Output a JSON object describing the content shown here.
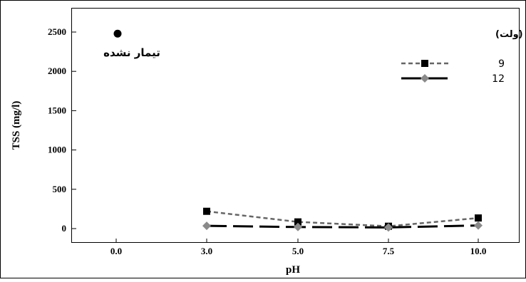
{
  "chart_data": {
    "type": "line",
    "xlabel": "pH",
    "ylabel": "TSS (mg/l)",
    "categories": [
      "0.0",
      "3.0",
      "5.0",
      "7.5",
      "10.0"
    ],
    "ylim": [
      0,
      2500
    ],
    "yticks": [
      "0",
      "500",
      "1000",
      "1500",
      "2000",
      "2500"
    ],
    "grid": false,
    "legend_placement": "top-right",
    "legend_title": "ولتاژ (ولت)",
    "series": [
      {
        "name": "9",
        "values": [
          null,
          220,
          85,
          30,
          135
        ],
        "color": "#666666",
        "marker": "square",
        "marker_color": "#000000",
        "dash": "dotted"
      },
      {
        "name": "12",
        "values": [
          null,
          35,
          20,
          15,
          40
        ],
        "color": "#000000",
        "marker": "diamond",
        "marker_color": "#8a8a8a",
        "dash": "long-dash"
      }
    ],
    "untreated": {
      "label": "تیمار نشده",
      "category": "0.0",
      "value": 2480,
      "color": "#000000"
    }
  }
}
